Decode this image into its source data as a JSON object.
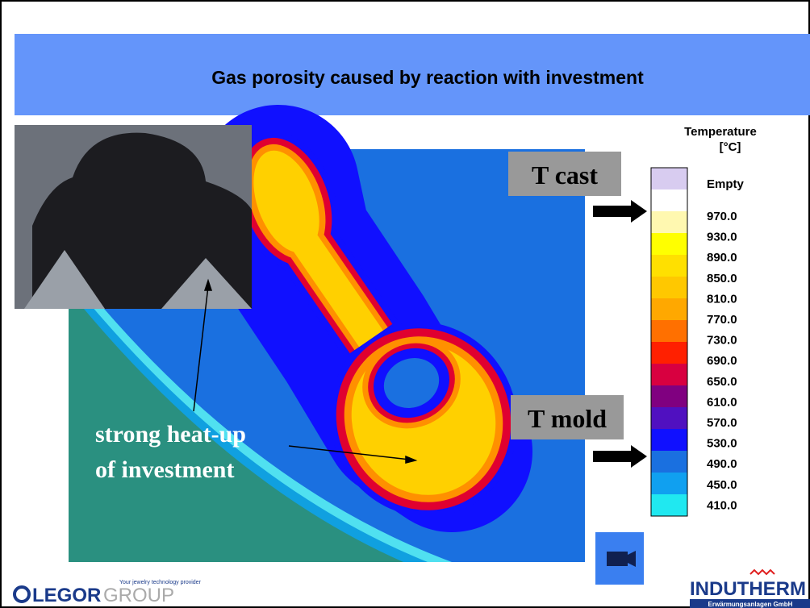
{
  "slide": {
    "title": "Gas porosity caused by reaction with investment",
    "labels": {
      "cast": "T cast",
      "mold": "T mold"
    },
    "annotation": [
      "strong heat-up",
      "of investment"
    ],
    "legend": {
      "title": [
        "Temperature",
        "[°C]"
      ],
      "entries": [
        "Empty",
        "970.0",
        "930.0",
        "890.0",
        "850.0",
        "810.0",
        "770.0",
        "730.0",
        "690.0",
        "650.0",
        "610.0",
        "570.0",
        "530.0",
        "490.0",
        "450.0",
        "410.0"
      ],
      "colors": [
        "#d8ccf0",
        "#ffffff",
        "#fff8b0",
        "#ffff00",
        "#ffe000",
        "#ffc800",
        "#ffa800",
        "#ff7000",
        "#ff2000",
        "#d80040",
        "#800080",
        "#5010c0",
        "#1010ff",
        "#1a70e0",
        "#10a0f0",
        "#20e8f0"
      ]
    },
    "logos": {
      "legor": "LEGOR",
      "group": "GROUP",
      "tagline": "Your jewelry technology provider",
      "indutherm": "INDUTHERM",
      "company": "Erwärmungsanlagen GmbH"
    }
  }
}
